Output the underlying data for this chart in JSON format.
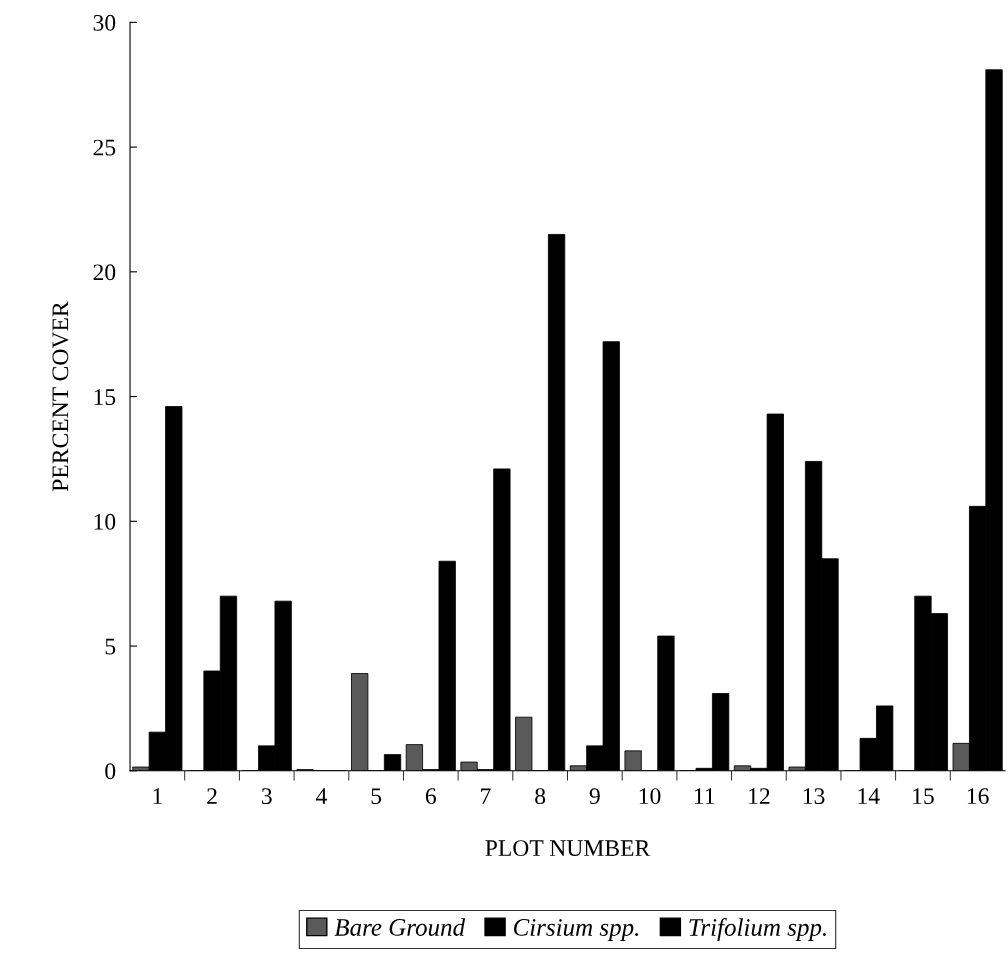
{
  "chart_data": {
    "type": "bar",
    "xlabel": "PLOT NUMBER",
    "ylabel": "PERCENT COVER",
    "categories": [
      "1",
      "2",
      "3",
      "4",
      "5",
      "6",
      "7",
      "8",
      "9",
      "10",
      "11",
      "12",
      "13",
      "14",
      "15",
      "16"
    ],
    "series": [
      {
        "name": "Bare Ground",
        "color": "#5a5a5a",
        "values": [
          0.15,
          0,
          0,
          0.05,
          3.9,
          1.05,
          0.35,
          2.15,
          0.2,
          0.8,
          0,
          0.2,
          0.15,
          0,
          0,
          1.1
        ]
      },
      {
        "name": "Cirsium spp.",
        "color": "#000000",
        "values": [
          1.55,
          4.0,
          1.0,
          0,
          0,
          0.05,
          0.05,
          0,
          1.0,
          0,
          0.1,
          0.1,
          12.4,
          1.3,
          7.0,
          10.6
        ]
      },
      {
        "name": "Trifolium spp.",
        "color": "#000000",
        "values": [
          14.6,
          7.0,
          6.8,
          0,
          0.65,
          8.4,
          12.1,
          21.5,
          17.2,
          5.4,
          3.1,
          14.3,
          8.5,
          2.6,
          6.3,
          28.1
        ]
      }
    ],
    "ylim": [
      0,
      30
    ],
    "yticks": [
      0,
      5,
      10,
      15,
      20,
      25,
      30
    ],
    "grid": false,
    "legend": "bottom"
  }
}
